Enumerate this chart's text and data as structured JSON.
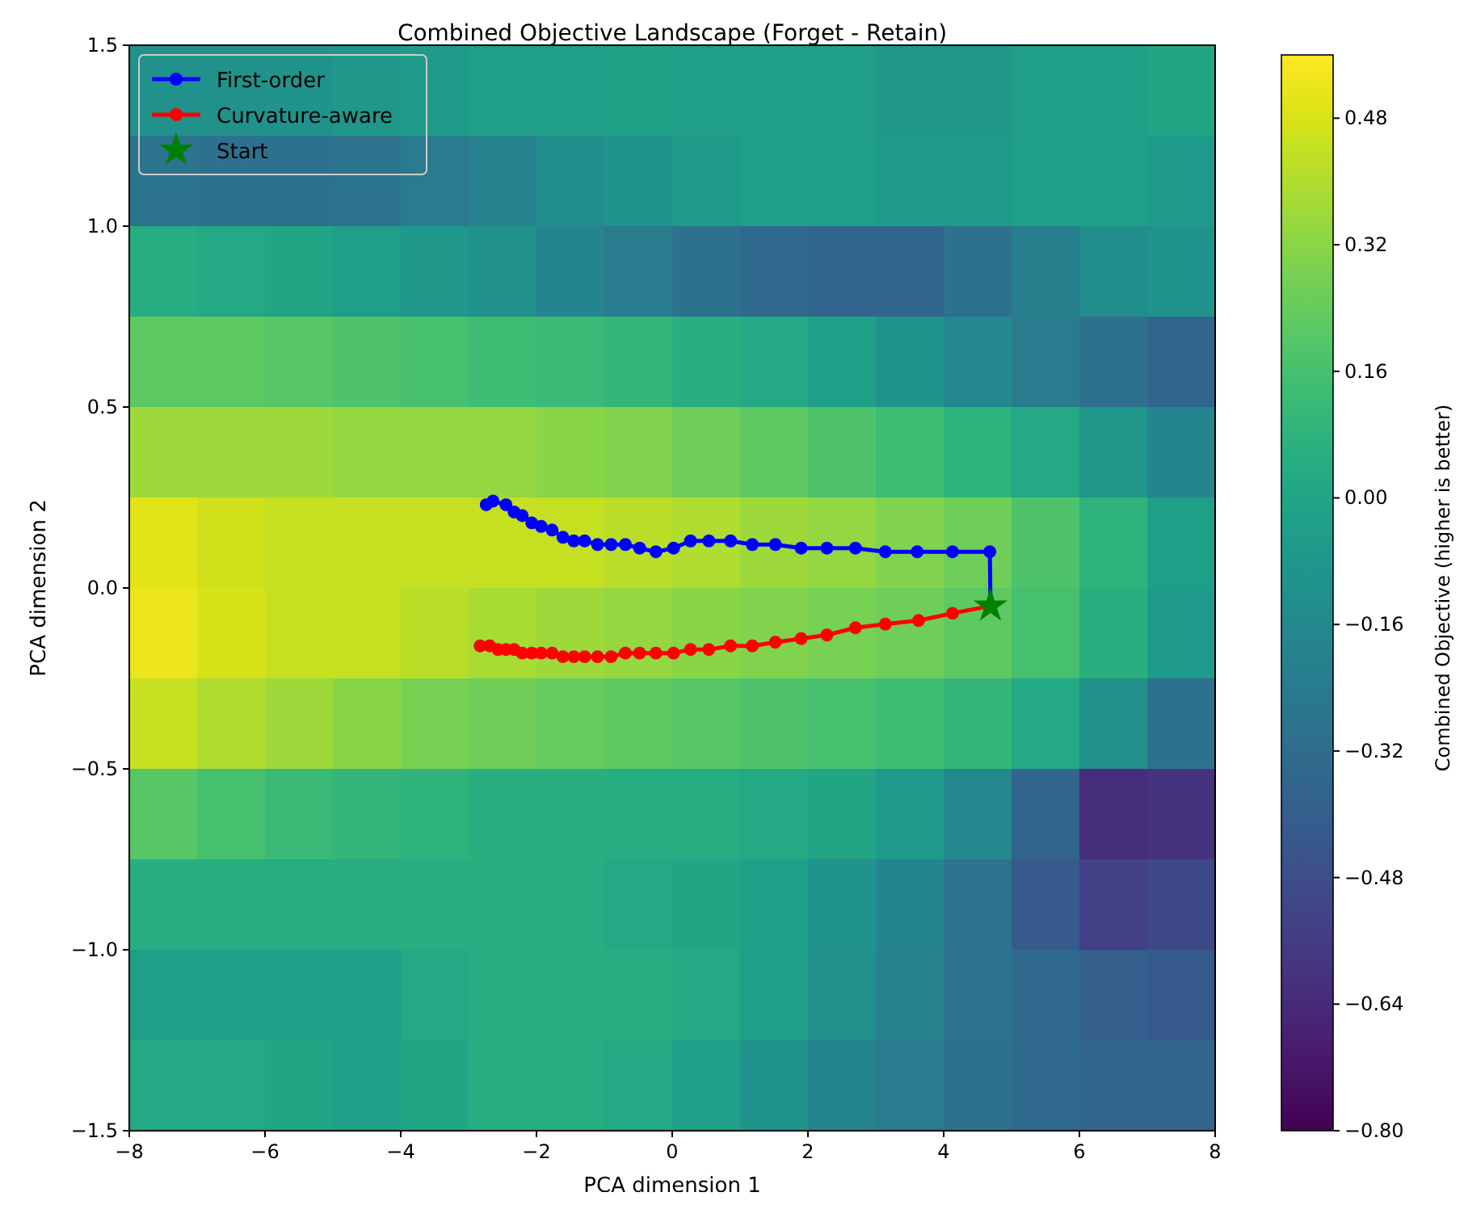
{
  "chart_data": {
    "type": "heatmap",
    "title": "Combined Objective Landscape (Forget - Retain)",
    "xlabel": "PCA dimension 1",
    "ylabel": "PCA dimension 2",
    "clabel": "Combined Objective (higher is better)",
    "xlim": [
      -8,
      8
    ],
    "ylim": [
      -1.5,
      1.5
    ],
    "xticks": [
      {
        "value": -8,
        "label": "−8"
      },
      {
        "value": -6,
        "label": "−6"
      },
      {
        "value": -4,
        "label": "−4"
      },
      {
        "value": -2,
        "label": "−2"
      },
      0,
      2,
      4,
      6,
      8
    ],
    "yticks": [
      {
        "value": -1.5,
        "label": "−1.5"
      },
      {
        "value": -1,
        "label": "−1.0"
      },
      {
        "value": -0.5,
        "label": "−0.5"
      },
      {
        "value": 0,
        "label": "0.0"
      },
      0.5,
      {
        "value": 1,
        "label": "1.0"
      },
      1.5
    ],
    "clim": [
      -0.8,
      0.56
    ],
    "cticks": [
      {
        "value": -0.8,
        "label": "−0.80"
      },
      {
        "value": -0.64,
        "label": "−0.64"
      },
      {
        "value": -0.48,
        "label": "−0.48"
      },
      {
        "value": -0.32,
        "label": "−0.32"
      },
      {
        "value": -0.16,
        "label": "−0.16"
      },
      {
        "value": 0,
        "label": "0.00"
      },
      0.16,
      0.32,
      0.48
    ],
    "cells": [
      [
        -0.12,
        -0.12,
        -0.1,
        -0.08,
        -0.06,
        -0.04,
        -0.04,
        -0.02,
        -0.04,
        -0.04,
        -0.04,
        -0.08,
        -0.08,
        -0.04,
        -0.04,
        0.0
      ],
      [
        -0.28,
        -0.3,
        -0.3,
        -0.28,
        -0.24,
        -0.2,
        -0.14,
        -0.1,
        -0.06,
        -0.04,
        -0.04,
        -0.06,
        -0.06,
        -0.04,
        -0.04,
        -0.06
      ],
      [
        0.04,
        0.02,
        0.0,
        -0.04,
        -0.08,
        -0.12,
        -0.18,
        -0.24,
        -0.3,
        -0.34,
        -0.36,
        -0.36,
        -0.3,
        -0.22,
        -0.14,
        -0.1
      ],
      [
        0.22,
        0.22,
        0.2,
        0.18,
        0.16,
        0.14,
        0.12,
        0.1,
        0.06,
        0.02,
        -0.04,
        -0.1,
        -0.16,
        -0.24,
        -0.3,
        -0.36
      ],
      [
        0.36,
        0.36,
        0.36,
        0.34,
        0.34,
        0.34,
        0.32,
        0.3,
        0.26,
        0.22,
        0.18,
        0.14,
        0.08,
        0.02,
        -0.08,
        -0.18
      ],
      [
        0.5,
        0.46,
        0.44,
        0.44,
        0.44,
        0.44,
        0.44,
        0.42,
        0.4,
        0.36,
        0.34,
        0.3,
        0.26,
        0.18,
        0.08,
        -0.04
      ],
      [
        0.52,
        0.48,
        0.44,
        0.44,
        0.42,
        0.38,
        0.36,
        0.34,
        0.32,
        0.3,
        0.28,
        0.26,
        0.22,
        0.16,
        0.06,
        -0.06
      ],
      [
        0.44,
        0.4,
        0.36,
        0.32,
        0.28,
        0.26,
        0.24,
        0.22,
        0.2,
        0.18,
        0.16,
        0.14,
        0.1,
        0.02,
        -0.12,
        -0.3
      ],
      [
        0.2,
        0.16,
        0.12,
        0.1,
        0.08,
        0.06,
        0.06,
        0.04,
        0.04,
        0.02,
        0.0,
        -0.06,
        -0.16,
        -0.36,
        -0.62,
        -0.6
      ],
      [
        0.04,
        0.04,
        0.04,
        0.04,
        0.04,
        0.04,
        0.04,
        0.02,
        0.0,
        -0.04,
        -0.1,
        -0.18,
        -0.28,
        -0.42,
        -0.54,
        -0.5
      ],
      [
        -0.04,
        -0.04,
        -0.04,
        -0.04,
        0.02,
        0.04,
        0.04,
        0.04,
        0.02,
        -0.04,
        -0.12,
        -0.2,
        -0.28,
        -0.34,
        -0.4,
        -0.42
      ],
      [
        0.02,
        0.02,
        0.0,
        -0.04,
        0.0,
        0.04,
        0.04,
        0.02,
        -0.04,
        -0.1,
        -0.18,
        -0.24,
        -0.3,
        -0.34,
        -0.36,
        -0.36
      ]
    ],
    "legend": "top left",
    "series": [
      {
        "name": "First-order",
        "type": "line",
        "color": "#0000ff",
        "marker": "circle",
        "x": [
          4.69,
          4.68,
          4.13,
          3.61,
          3.14,
          2.7,
          2.28,
          1.9,
          1.52,
          1.18,
          0.86,
          0.54,
          0.27,
          0.02,
          -0.24,
          -0.48,
          -0.69,
          -0.9,
          -1.1,
          -1.29,
          -1.45,
          -1.61,
          -1.77,
          -1.93,
          -2.07,
          -2.21,
          -2.33,
          -2.45,
          -2.64,
          -2.74
        ],
        "values": [
          -0.05,
          0.1,
          0.1,
          0.1,
          0.1,
          0.11,
          0.11,
          0.11,
          0.12,
          0.12,
          0.13,
          0.13,
          0.13,
          0.11,
          0.1,
          0.11,
          0.12,
          0.12,
          0.12,
          0.13,
          0.13,
          0.14,
          0.16,
          0.17,
          0.18,
          0.2,
          0.21,
          0.23,
          0.24,
          0.23
        ]
      },
      {
        "name": "Curvature-aware",
        "type": "line",
        "color": "#ff0000",
        "marker": "circle",
        "x": [
          4.68,
          4.13,
          3.63,
          3.14,
          2.7,
          2.28,
          1.9,
          1.52,
          1.18,
          0.86,
          0.54,
          0.27,
          0.02,
          -0.24,
          -0.48,
          -0.69,
          -0.9,
          -1.1,
          -1.29,
          -1.45,
          -1.61,
          -1.77,
          -1.93,
          -2.07,
          -2.21,
          -2.33,
          -2.45,
          -2.57,
          -2.69,
          -2.83
        ],
        "values": [
          -0.05,
          -0.07,
          -0.09,
          -0.1,
          -0.11,
          -0.13,
          -0.14,
          -0.15,
          -0.16,
          -0.16,
          -0.17,
          -0.17,
          -0.18,
          -0.18,
          -0.18,
          -0.18,
          -0.19,
          -0.19,
          -0.19,
          -0.19,
          -0.19,
          -0.18,
          -0.18,
          -0.18,
          -0.18,
          -0.17,
          -0.17,
          -0.17,
          -0.16,
          -0.16
        ]
      },
      {
        "name": "Start",
        "type": "scatter",
        "color": "#008000",
        "marker": "star",
        "x": [
          4.69
        ],
        "values": [
          -0.05
        ]
      }
    ]
  }
}
